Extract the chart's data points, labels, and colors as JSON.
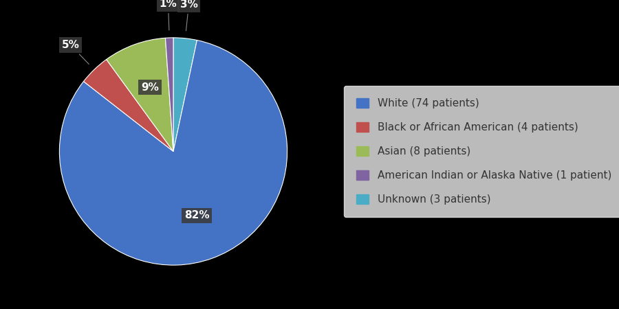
{
  "labels": [
    "White (74 patients)",
    "Black or African American (4 patients)",
    "Asian (8 patients)",
    "American Indian or Alaska Native (1 patient)",
    "Unknown (3 patients)"
  ],
  "values": [
    74,
    4,
    8,
    1,
    3
  ],
  "colors": [
    "#4472C4",
    "#C0504D",
    "#9BBB59",
    "#8064A2",
    "#4BACC6"
  ],
  "background_color": "#000000",
  "legend_bg_color": "#EBEBEB",
  "legend_text_color": "#333333",
  "label_bg_color": "#3A3A3A",
  "label_text_color": "#FFFFFF",
  "legend_fontsize": 11,
  "pct_fontsize": 11,
  "ordered_values": [
    3,
    74,
    4,
    8,
    1
  ],
  "ordered_pcts": [
    "3%",
    "82%",
    "5%",
    "9%",
    "1%"
  ],
  "ordered_color_indices": [
    4,
    0,
    1,
    2,
    3
  ],
  "startangle": 90
}
